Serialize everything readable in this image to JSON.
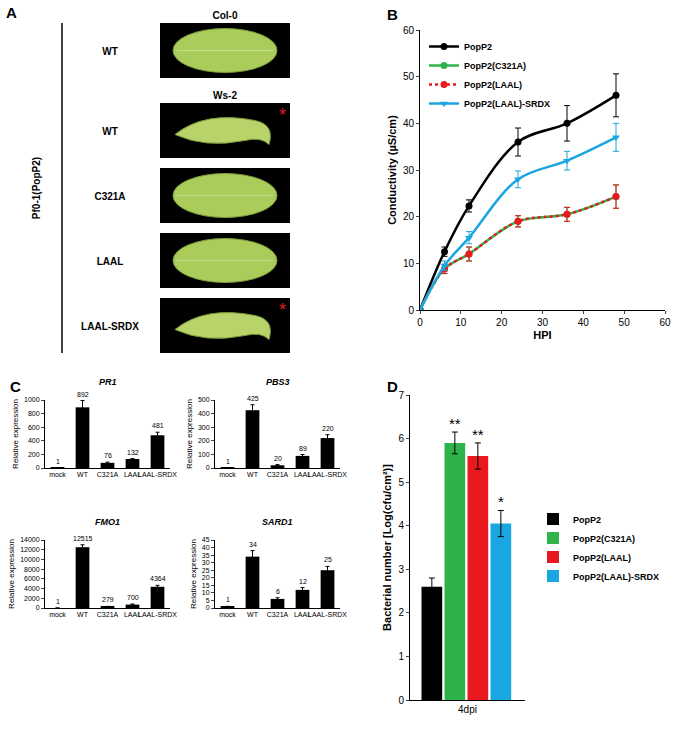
{
  "panel_a": {
    "panel": "A",
    "side_label": "Pf0-1(PopP2)",
    "mark": "*",
    "groups": [
      {
        "title": "Col-0",
        "rows": [
          {
            "label": "WT",
            "marked": false
          }
        ]
      },
      {
        "title": "Ws-2",
        "rows": [
          {
            "label": "WT",
            "marked": true
          },
          {
            "label": "C321A",
            "marked": false
          },
          {
            "label": "LAAL",
            "marked": false
          },
          {
            "label": "LAAL-SRDX",
            "marked": true
          }
        ]
      }
    ]
  },
  "chart_data": [
    {
      "type": "line",
      "panel": "B",
      "x_label": "HPI",
      "y_label": "Conductivity (µS/cm)",
      "x": [
        0,
        6,
        12,
        24,
        36,
        48
      ],
      "xlim": [
        0,
        60
      ],
      "xticks": [
        0,
        10,
        20,
        30,
        40,
        50,
        60
      ],
      "ylim": [
        0,
        60
      ],
      "yticks": [
        0,
        10,
        20,
        30,
        40,
        50,
        60
      ],
      "legend": "upper left",
      "series": [
        {
          "name": "PopP2",
          "color": "#000000",
          "marker": "circle",
          "line_style": "solid",
          "values": [
            0,
            12.5,
            22.3,
            36,
            40,
            46
          ],
          "errors": [
            0,
            1,
            1.3,
            3,
            3.8,
            4.6
          ]
        },
        {
          "name": "PopP2(C321A)",
          "color": "#2db34a",
          "marker": "circle",
          "line_style": "solid",
          "values": [
            0,
            8.8,
            12,
            19,
            20.5,
            24.3
          ],
          "errors": [
            0,
            1,
            1.5,
            1.2,
            1.5,
            2.5
          ]
        },
        {
          "name": "PopP2(LAAL)",
          "color": "#e8191f",
          "marker": "circle",
          "line_style": "dot",
          "values": [
            0,
            8.8,
            12,
            19,
            20.5,
            24.3
          ],
          "errors": [
            0,
            1,
            1.5,
            1.2,
            1.5,
            2.5
          ]
        },
        {
          "name": "PopP2(LAAL)-SRDX",
          "color": "#1aa6e0",
          "marker": "triangle-down",
          "line_style": "solid",
          "values": [
            0,
            9.5,
            15.5,
            28,
            32,
            37
          ],
          "errors": [
            0,
            1,
            1.3,
            1.8,
            2,
            3
          ]
        }
      ]
    },
    {
      "type": "bar",
      "panel": "C",
      "title": "PR1",
      "y_label": "Relative expression",
      "categories": [
        "mock",
        "WT",
        "C321A",
        "LAAL",
        "LAAL-SRDX"
      ],
      "values": [
        1,
        892,
        76,
        132,
        481
      ],
      "errors": [
        0.2,
        100,
        10,
        6,
        45
      ],
      "color": "#000000",
      "data_labels": true,
      "ylim": [
        0,
        1000
      ],
      "yticks": [
        0,
        200,
        400,
        600,
        800,
        1000
      ]
    },
    {
      "type": "bar",
      "title": "PBS3",
      "y_label": "Relative expression",
      "categories": [
        "mock",
        "WT",
        "C321A",
        "LAAL",
        "LAAL-SRDX"
      ],
      "values": [
        1,
        425,
        20,
        89,
        220
      ],
      "errors": [
        0.2,
        40,
        5,
        10,
        25
      ],
      "color": "#000000",
      "data_labels": true,
      "ylim": [
        0,
        500
      ],
      "yticks": [
        0,
        100,
        200,
        300,
        400,
        500
      ]
    },
    {
      "type": "bar",
      "title": "FMO1",
      "y_label": "Relative expression",
      "categories": [
        "mock",
        "WT",
        "C321A",
        "LAAL",
        "LAAL-SRDX"
      ],
      "values": [
        1,
        12515,
        279,
        700,
        4364
      ],
      "errors": [
        0.2,
        500,
        50,
        120,
        300
      ],
      "color": "#000000",
      "data_labels": true,
      "ylim": [
        0,
        14000
      ],
      "yticks": [
        0,
        2000,
        4000,
        6000,
        8000,
        10000,
        12000,
        14000
      ]
    },
    {
      "type": "bar",
      "title": "SARD1",
      "y_label": "Relative expression",
      "categories": [
        "mock",
        "WT",
        "C321A",
        "LAAL",
        "LAAL-SRDX"
      ],
      "values": [
        1,
        34,
        6,
        12,
        25
      ],
      "errors": [
        0.1,
        4,
        0.8,
        1.5,
        2.5
      ],
      "color": "#000000",
      "data_labels": true,
      "ylim": [
        0,
        45
      ],
      "yticks": [
        0,
        5,
        10,
        15,
        20,
        25,
        30,
        35,
        40,
        45
      ]
    },
    {
      "type": "bar",
      "panel": "D",
      "y_label": "Bacterial number [Log(cfu/cm²)]",
      "categories": [
        "4dpi"
      ],
      "ylim": [
        0,
        7
      ],
      "yticks": [
        0,
        1,
        2,
        3,
        4,
        5,
        6,
        7
      ],
      "legend": "right",
      "series": [
        {
          "name": "PopP2",
          "color": "#000000",
          "values": [
            2.6
          ],
          "errors": [
            0.2
          ],
          "significance": null
        },
        {
          "name": "PopP2(C321A)",
          "color": "#2db34a",
          "values": [
            5.9
          ],
          "errors": [
            0.25
          ],
          "significance": "**"
        },
        {
          "name": "PopP2(LAAL)",
          "color": "#e8191f",
          "values": [
            5.6
          ],
          "errors": [
            0.3
          ],
          "significance": "**"
        },
        {
          "name": "PopP2(LAAL)-SRDX",
          "color": "#1aa6e0",
          "values": [
            4.05
          ],
          "errors": [
            0.3
          ],
          "significance": "*"
        }
      ]
    }
  ]
}
